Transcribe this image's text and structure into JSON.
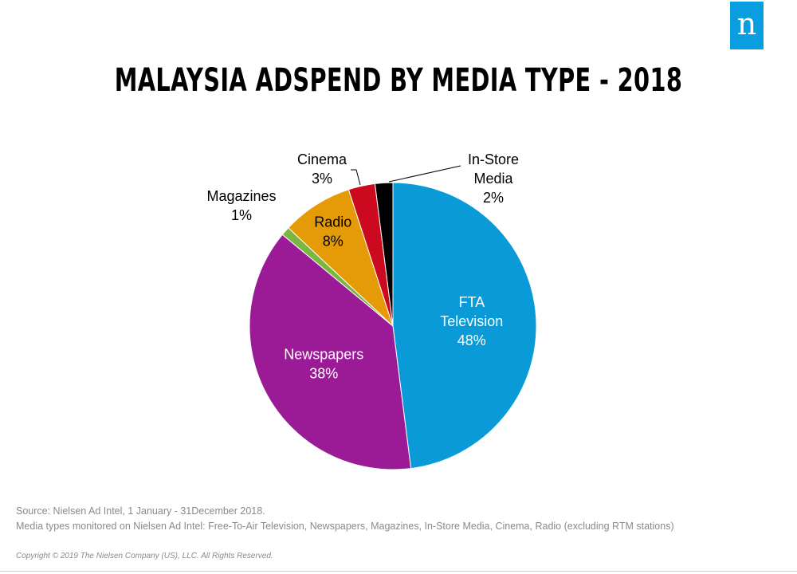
{
  "brand": {
    "logo_letter": "n",
    "logo_color": "#0a9ee0"
  },
  "chart_data": {
    "type": "pie",
    "title": "MALAYSIA ADSPEND BY MEDIA TYPE - 2018",
    "slices": [
      {
        "name": "FTA Television",
        "label_lines": [
          "FTA",
          "Television"
        ],
        "value": 48,
        "value_label": "48%",
        "color": "#0a9ad8",
        "label_inside": true,
        "text_color": "#ffffff"
      },
      {
        "name": "Newspapers",
        "label_lines": [
          "Newspapers"
        ],
        "value": 38,
        "value_label": "38%",
        "color": "#9b1b97",
        "label_inside": true,
        "text_color": "#ffffff"
      },
      {
        "name": "Magazines",
        "label_lines": [
          "Magazines"
        ],
        "value": 1,
        "value_label": "1%",
        "color": "#7ab640",
        "label_inside": false,
        "text_color": "#000000"
      },
      {
        "name": "Radio",
        "label_lines": [
          "Radio"
        ],
        "value": 8,
        "value_label": "8%",
        "color": "#e59b07",
        "label_inside": true,
        "text_color": "#000000"
      },
      {
        "name": "Cinema",
        "label_lines": [
          "Cinema"
        ],
        "value": 3,
        "value_label": "3%",
        "color": "#cc0a1f",
        "label_inside": false,
        "text_color": "#000000"
      },
      {
        "name": "In-Store Media",
        "label_lines": [
          "In-Store",
          "Media"
        ],
        "value": 2,
        "value_label": "2%",
        "color": "#000000",
        "label_inside": false,
        "text_color": "#000000"
      }
    ]
  },
  "footer": {
    "source_line1": "Source:  Nielsen Ad Intel, 1 January  - 31December 2018.",
    "source_line2": "Media types monitored on Nielsen Ad Intel: Free-To-Air Television, Newspapers, Magazines, In-Store Media, Cinema, Radio (excluding RTM stations)",
    "copyright": "Copyright © 2019 The Nielsen Company (US), LLC. All Rights Reserved."
  }
}
